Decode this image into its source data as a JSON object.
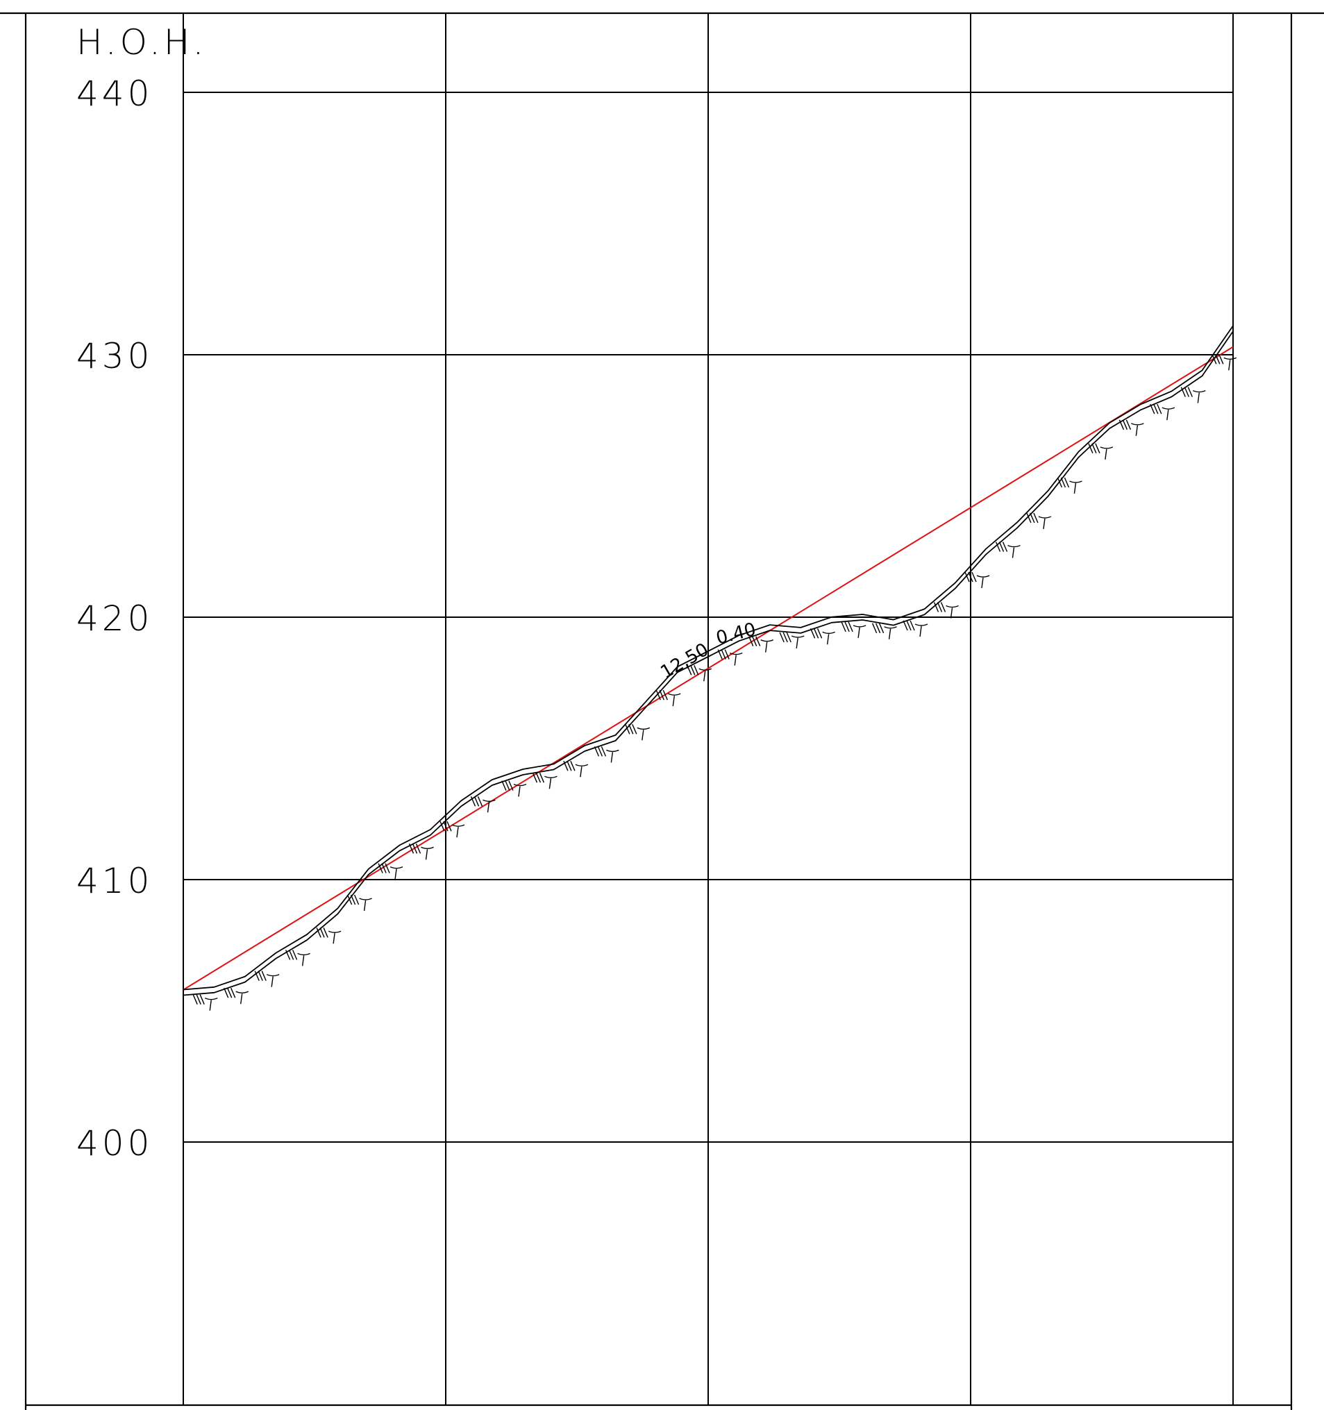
{
  "profile": {
    "elevation_axis_label": "H.O.H.",
    "y_levels": [
      440,
      430,
      420,
      410,
      400
    ],
    "y_range": [
      395,
      443
    ],
    "gridlines_y": [
      440,
      430,
      420,
      410,
      400
    ],
    "vertical_sections": 5,
    "colors": {
      "grid": "#000000",
      "terrain": "#000000",
      "design_line": "#e01010"
    },
    "terrain_line": {
      "elevations": [
        405.7,
        405.8,
        406.2,
        407.1,
        407.8,
        408.8,
        410.3,
        411.2,
        411.8,
        412.9,
        413.7,
        414.1,
        414.3,
        415.0,
        415.4,
        416.7,
        418.0,
        418.6,
        419.2,
        419.6,
        419.5,
        419.9,
        420.0,
        419.8,
        420.2,
        421.2,
        422.5,
        423.5,
        424.7,
        426.2,
        427.3,
        428.0,
        428.5,
        429.3,
        431.0
      ]
    },
    "design_line": {
      "start_elevation": 405.8,
      "end_elevation": 430.3
    },
    "annotations": [
      "12,50",
      "0.40"
    ]
  }
}
